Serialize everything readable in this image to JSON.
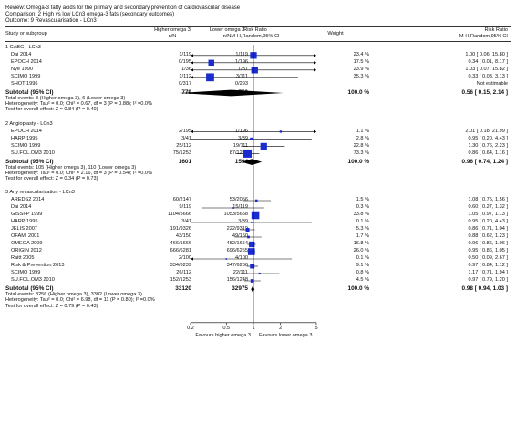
{
  "header": {
    "review": "Review:  Omega-3 fatty acids for the primary and secondary prevention of cardiovascular disease",
    "comparison": "Comparison:  2 High vs low LCn3 omega-3 fats (secondary outcomes)",
    "outcome": "Outcome:  9 Revascularisation - LCn3"
  },
  "columns": {
    "study": "Study or subgroup",
    "exp1": "Higher omega 3",
    "exp2": "n/N",
    "ctl1": "Lower omega 3",
    "ctl2": "n/N",
    "rr1": "Risk Ratio",
    "rr2": "M-H,Random,95% CI",
    "weight": "Weight",
    "rrr1": "Risk Ratio",
    "rrr2": "M-H,Random,95% CI"
  },
  "colors": {
    "marker": "#1a2ccf",
    "diamond": "#000000"
  },
  "chart_data": {
    "type": "forest",
    "scale": "log",
    "xlim": [
      0.2,
      5
    ],
    "ticks": [
      {
        "v": 0.2,
        "label": "0.2"
      },
      {
        "v": 0.5,
        "label": "0.5"
      },
      {
        "v": 1,
        "label": "1"
      },
      {
        "v": 2,
        "label": "2"
      },
      {
        "v": 5,
        "label": "5"
      }
    ],
    "favours_left": "Favours higher omega 3",
    "favours_right": "Favours lower omega 3",
    "groups": [
      {
        "title": "1 CABG - LCn3",
        "studies": [
          {
            "name": "Dai 2014",
            "exp": "1/119",
            "ctl": "1/119",
            "weight": "23.4 %",
            "ci_text": "1.00 [ 0.06, 15.80 ]",
            "rr": 1.0,
            "lo": 0.06,
            "hi": 15.8,
            "w": 23.4
          },
          {
            "name": "EPOCH 2014",
            "exp": "0/195",
            "ctl": "1/196",
            "weight": "17.5 %",
            "ci_text": "0.34 [ 0.01, 8.17 ]",
            "rr": 0.34,
            "lo": 0.01,
            "hi": 8.17,
            "w": 17.5
          },
          {
            "name": "Nye 1990",
            "exp": "1/36",
            "ctl": "1/37",
            "weight": "23.9 %",
            "ci_text": "1.03 [ 0.07, 15.82 ]",
            "rr": 1.03,
            "lo": 0.07,
            "hi": 15.82,
            "w": 23.9
          },
          {
            "name": "SCIMO 1999",
            "exp": "1/112",
            "ctl": "3/111",
            "weight": "35.3 %",
            "ci_text": "0.33 [ 0.03, 3.13 ]",
            "rr": 0.33,
            "lo": 0.03,
            "hi": 3.13,
            "w": 35.3
          },
          {
            "name": "SHOT 1996",
            "exp": "0/317",
            "ctl": "0/293",
            "weight": "",
            "ci_text": "Not estimable",
            "rr": null,
            "lo": null,
            "hi": null,
            "w": 0
          }
        ],
        "subtotal": {
          "label": "Subtotal (95% CI)",
          "exp": "779",
          "ctl": "756",
          "weight": "100.0 %",
          "ci_text": "0.56 [ 0.15, 2.14 ]",
          "rr": 0.56,
          "lo": 0.15,
          "hi": 2.14
        },
        "stats": [
          "Total events: 3 (Higher omega 3), 6 (Lower omega 3)",
          "Heterogeneity: Tau² = 0.0; Chi² = 0.67, df = 3 (P = 0.88); I² =0.0%",
          "Test for overall effect: Z = 0.84 (P = 0.40)"
        ]
      },
      {
        "title": "2 Angioplasty - LCn3",
        "studies": [
          {
            "name": "EPOCH 2014",
            "exp": "2/195",
            "ctl": "1/196",
            "weight": "1.1 %",
            "ci_text": "2.01 [ 0.18, 21.99 ]",
            "rr": 2.01,
            "lo": 0.18,
            "hi": 21.99,
            "w": 1.1
          },
          {
            "name": "HARP 1995",
            "exp": "3/41",
            "ctl": "3/39",
            "weight": "2.8 %",
            "ci_text": "0.95 [ 0.20, 4.43 ]",
            "rr": 0.95,
            "lo": 0.2,
            "hi": 4.43,
            "w": 2.8
          },
          {
            "name": "SCIMO 1999",
            "exp": "25/112",
            "ctl": "19/111",
            "weight": "22.8 %",
            "ci_text": "1.30 [ 0.76, 2.23 ]",
            "rr": 1.3,
            "lo": 0.76,
            "hi": 2.23,
            "w": 22.8
          },
          {
            "name": "SU.FOL.OM3 2010",
            "exp": "75/1253",
            "ctl": "87/1248",
            "weight": "73.3 %",
            "ci_text": "0.86 [ 0.64, 1.16 ]",
            "rr": 0.86,
            "lo": 0.64,
            "hi": 1.16,
            "w": 73.3
          }
        ],
        "subtotal": {
          "label": "Subtotal (95% CI)",
          "exp": "1601",
          "ctl": "1594",
          "weight": "100.0 %",
          "ci_text": "0.96 [ 0.74, 1.24 ]",
          "rr": 0.96,
          "lo": 0.74,
          "hi": 1.24
        },
        "stats": [
          "Total events: 105 (Higher omega 3), 110 (Lower omega 3)",
          "Heterogeneity: Tau² = 0.0; Chi² = 2.16, df = 3 (P = 0.54); I² =0.0%",
          "Test for overall effect: Z = 0.34 (P = 0.73)"
        ]
      },
      {
        "title": "3 Any revascularisation - LCn3",
        "studies": [
          {
            "name": "AREDS2 2014",
            "exp": "60/2147",
            "ctl": "53/2056",
            "weight": "1.5 %",
            "ci_text": "1.08 [ 0.75, 1.56 ]",
            "rr": 1.08,
            "lo": 0.75,
            "hi": 1.56,
            "w": 1.5
          },
          {
            "name": "Dai 2014",
            "exp": "9/119",
            "ctl": "15/119",
            "weight": "0.3 %",
            "ci_text": "0.60 [ 0.27, 1.32 ]",
            "rr": 0.6,
            "lo": 0.27,
            "hi": 1.32,
            "w": 0.3
          },
          {
            "name": "GISSI-P 1999",
            "exp": "1104/5666",
            "ctl": "1053/5658",
            "weight": "33.8 %",
            "ci_text": "1.05 [ 0.97, 1.13 ]",
            "rr": 1.05,
            "lo": 0.97,
            "hi": 1.13,
            "w": 33.8
          },
          {
            "name": "HARP 1995",
            "exp": "3/41",
            "ctl": "3/39",
            "weight": "0.1 %",
            "ci_text": "0.95 [ 0.20, 4.43 ]",
            "rr": 0.95,
            "lo": 0.2,
            "hi": 4.43,
            "w": 0.1
          },
          {
            "name": "JELIS 2007",
            "exp": "191/9326",
            "ctl": "222/9319",
            "weight": "5.3 %",
            "ci_text": "0.86 [ 0.71, 1.04 ]",
            "rr": 0.86,
            "lo": 0.71,
            "hi": 1.04,
            "w": 5.3
          },
          {
            "name": "OFAMI 2001",
            "exp": "43/150",
            "ctl": "49/150",
            "weight": "1.7 %",
            "ci_text": "0.88 [ 0.62, 1.23 ]",
            "rr": 0.88,
            "lo": 0.62,
            "hi": 1.23,
            "w": 1.7
          },
          {
            "name": "OMEGA 2009",
            "exp": "466/1666",
            "ctl": "482/1654",
            "weight": "16.8 %",
            "ci_text": "0.96 [ 0.86, 1.06 ]",
            "rr": 0.96,
            "lo": 0.86,
            "hi": 1.06,
            "w": 16.8
          },
          {
            "name": "ORIGIN 2012",
            "exp": "666/6281",
            "ctl": "696/6255",
            "weight": "26.0 %",
            "ci_text": "0.95 [ 0.86, 1.05 ]",
            "rr": 0.95,
            "lo": 0.86,
            "hi": 1.05,
            "w": 26.0
          },
          {
            "name": "Raitt 2005",
            "exp": "2/100",
            "ctl": "4/100",
            "weight": "0.1 %",
            "ci_text": "0.50 [ 0.09, 2.67 ]",
            "rr": 0.5,
            "lo": 0.09,
            "hi": 2.67,
            "w": 0.1
          },
          {
            "name": "Risk & Prevention 2013",
            "exp": "334/6239",
            "ctl": "347/6266",
            "weight": "9.1 %",
            "ci_text": "0.97 [ 0.84, 1.12 ]",
            "rr": 0.97,
            "lo": 0.84,
            "hi": 1.12,
            "w": 9.1
          },
          {
            "name": "SCIMO 1999",
            "exp": "26/112",
            "ctl": "22/111",
            "weight": "0.8 %",
            "ci_text": "1.17 [ 0.71, 1.94 ]",
            "rr": 1.17,
            "lo": 0.71,
            "hi": 1.94,
            "w": 0.8
          },
          {
            "name": "SU.FOL.OM3 2010",
            "exp": "152/1253",
            "ctl": "156/1248",
            "weight": "4.5 %",
            "ci_text": "0.97 [ 0.79, 1.20 ]",
            "rr": 0.97,
            "lo": 0.79,
            "hi": 1.2,
            "w": 4.5
          }
        ],
        "subtotal": {
          "label": "Subtotal (95% CI)",
          "exp": "33120",
          "ctl": "32975",
          "weight": "100.0 %",
          "ci_text": "0.98 [ 0.94, 1.03 ]",
          "rr": 0.98,
          "lo": 0.94,
          "hi": 1.03
        },
        "stats": [
          "Total events: 3256 (Higher omega 3), 3302 (Lower omega 3)",
          "Heterogeneity: Tau² = 0.0; Chi² = 6.98, df = 11 (P = 0.80); I² =0.0%",
          "Test for overall effect: Z = 0.79 (P = 0.43)"
        ]
      }
    ]
  }
}
